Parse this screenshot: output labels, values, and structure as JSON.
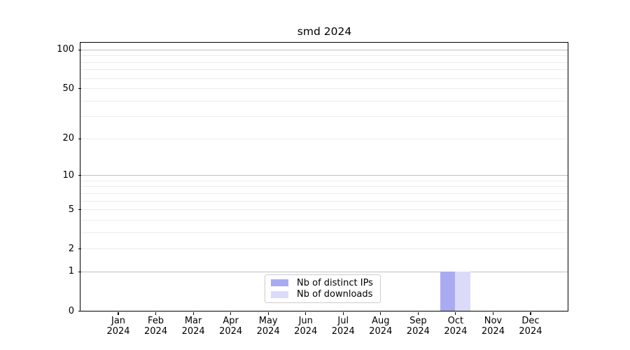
{
  "title": "smd 2024",
  "chart_data": {
    "type": "bar",
    "title": "smd 2024",
    "categories": [
      "Jan",
      "Feb",
      "Mar",
      "Apr",
      "May",
      "Jun",
      "Jul",
      "Aug",
      "Sep",
      "Oct",
      "Nov",
      "Dec"
    ],
    "year_label": "2024",
    "series": [
      {
        "name": "Nb of distinct IPs",
        "color": "#aaaaf2",
        "values": [
          0,
          0,
          0,
          0,
          0,
          0,
          0,
          0,
          0,
          1,
          0,
          0
        ]
      },
      {
        "name": "Nb of downloads",
        "color": "#dbdbf9",
        "values": [
          0,
          0,
          0,
          0,
          0,
          0,
          0,
          0,
          0,
          1,
          0,
          0
        ]
      }
    ],
    "xlabel": "",
    "ylabel": "",
    "y_axis": {
      "scale": "log1p",
      "tick_values": [
        0,
        1,
        2,
        5,
        10,
        20,
        50,
        100
      ],
      "tick_labels": [
        "0",
        "1",
        "2",
        "5",
        "10",
        "20",
        "50",
        "100"
      ],
      "major_gridlines": [
        1,
        10,
        100
      ],
      "minor_gridlines": [
        2,
        3,
        4,
        5,
        6,
        7,
        8,
        9,
        20,
        30,
        40,
        50,
        60,
        70,
        80,
        90
      ],
      "top_value": 113
    },
    "legend": {
      "position": "bottom-center",
      "items": [
        {
          "label": "Nb of distinct IPs",
          "color": "#aaaaf2"
        },
        {
          "label": "Nb of downloads",
          "color": "#dbdbf9"
        }
      ]
    },
    "grid": true,
    "colors": {
      "major_grid": "#c0c0c0",
      "minor_grid": "#ececec",
      "spine": "#000000",
      "background": "#ffffff"
    }
  }
}
